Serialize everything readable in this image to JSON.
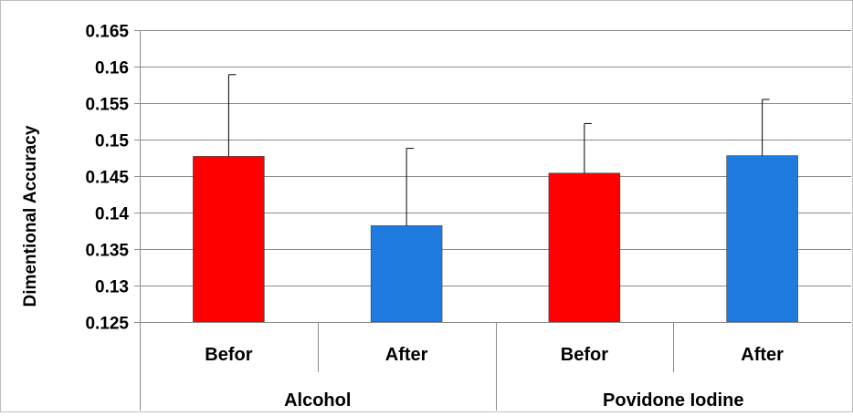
{
  "chart_data": {
    "type": "bar",
    "title": "",
    "ylabel": "Dimentional Accuracy",
    "xlabel": "",
    "ylim": [
      0.125,
      0.165
    ],
    "yticks": [
      0.125,
      0.13,
      0.135,
      0.14,
      0.145,
      0.15,
      0.155,
      0.16,
      0.165
    ],
    "ytick_labels": [
      "0.125",
      "0.13",
      "0.135",
      "0.14",
      "0.145",
      "0.15",
      "0.155",
      "0.16",
      "0.165"
    ],
    "grid": true,
    "legend": "none",
    "groups": [
      {
        "label": "Alcohol",
        "bars": [
          {
            "label": "Befor",
            "value": 0.1477,
            "error": 0.0112,
            "color": "#ff0000"
          },
          {
            "label": "After",
            "value": 0.1382,
            "error": 0.0106,
            "color": "#1f7be0"
          }
        ]
      },
      {
        "label": "Povidone Iodine",
        "bars": [
          {
            "label": "Befor",
            "value": 0.1454,
            "error": 0.0068,
            "color": "#ff0000"
          },
          {
            "label": "After",
            "value": 0.1478,
            "error": 0.0077,
            "color": "#1f7be0"
          }
        ]
      }
    ]
  }
}
